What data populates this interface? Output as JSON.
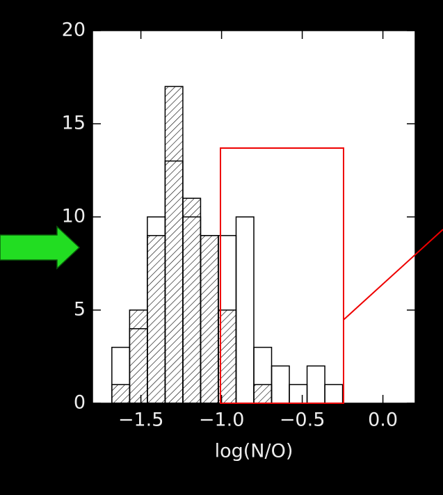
{
  "chart_data": {
    "type": "histogram",
    "x_label": "log(N/O)",
    "bins": [
      -1.68,
      -1.57,
      -1.46,
      -1.35,
      -1.24,
      -1.13,
      -1.02,
      -0.91,
      -0.8,
      -0.69,
      -0.58,
      -0.47,
      -0.36,
      -0.25
    ],
    "series": [
      {
        "color": "#000000",
        "hatch": false,
        "values": [
          3,
          4,
          10,
          13,
          10,
          9,
          9,
          10,
          3,
          2,
          1,
          2,
          1
        ]
      },
      {
        "color": "#000000",
        "hatch": true,
        "values": [
          1,
          5,
          9,
          17,
          11,
          9,
          5,
          0,
          1,
          0,
          0,
          0,
          0
        ]
      }
    ],
    "xlim": [
      -1.8,
      0.2
    ],
    "xticks": [
      {
        "value": -1.5,
        "label": "−1.5"
      },
      {
        "value": -1.0,
        "label": "−1.0"
      },
      {
        "value": -0.5,
        "label": "−0.5"
      },
      {
        "value": 0.0,
        "label": "0.0"
      }
    ],
    "ylim": [
      0,
      20
    ],
    "yticks": [
      0,
      5,
      10,
      15,
      20
    ]
  }
}
